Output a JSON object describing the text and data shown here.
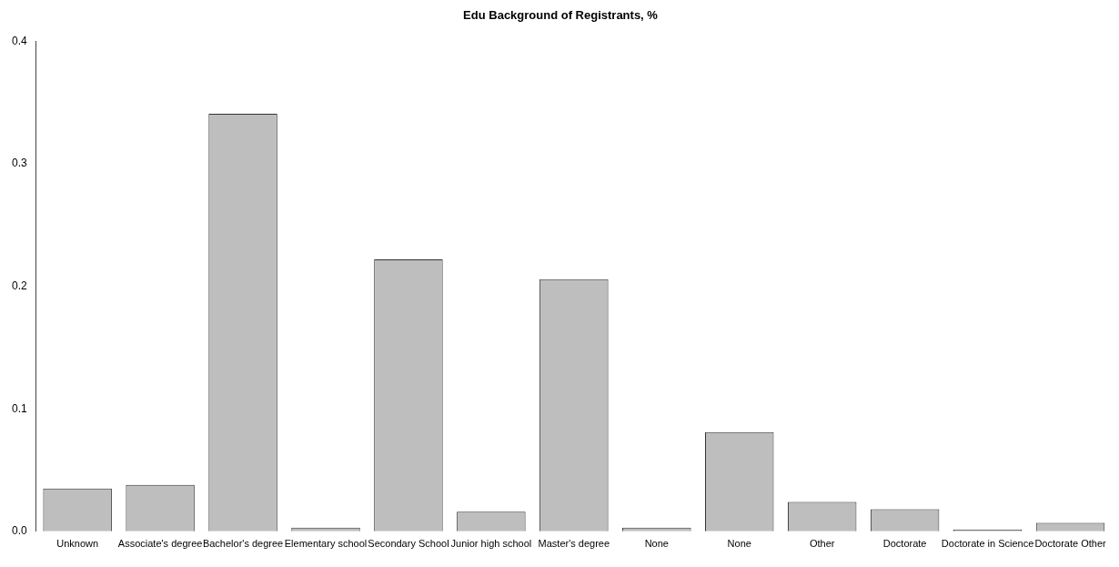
{
  "chart_data": {
    "type": "bar",
    "title": "Edu Background of Registrants, %",
    "categories": [
      "Unknown",
      "Associate's degree",
      "Bachelor's degree",
      "Elementary school",
      "Secondary School",
      "Junior high school",
      "Master's degree",
      "None",
      "None",
      "Other",
      "Doctorate",
      "Doctorate in Science",
      "Doctorate Other"
    ],
    "values": [
      0.035,
      0.038,
      0.341,
      0.003,
      0.222,
      0.016,
      0.206,
      0.003,
      0.081,
      0.024,
      0.018,
      0.0015,
      0.007
    ],
    "color": "#bebebe",
    "ylim": [
      0,
      0.4
    ],
    "yticks": [
      {
        "value": 0,
        "label": "0.0"
      },
      {
        "value": 0.1,
        "label": "0.1"
      },
      {
        "value": 0.2,
        "label": "0.2"
      },
      {
        "value": 0.3,
        "label": "0.3"
      },
      {
        "value": 0.4,
        "label": "0.4"
      }
    ],
    "grid": false,
    "legend": false
  }
}
